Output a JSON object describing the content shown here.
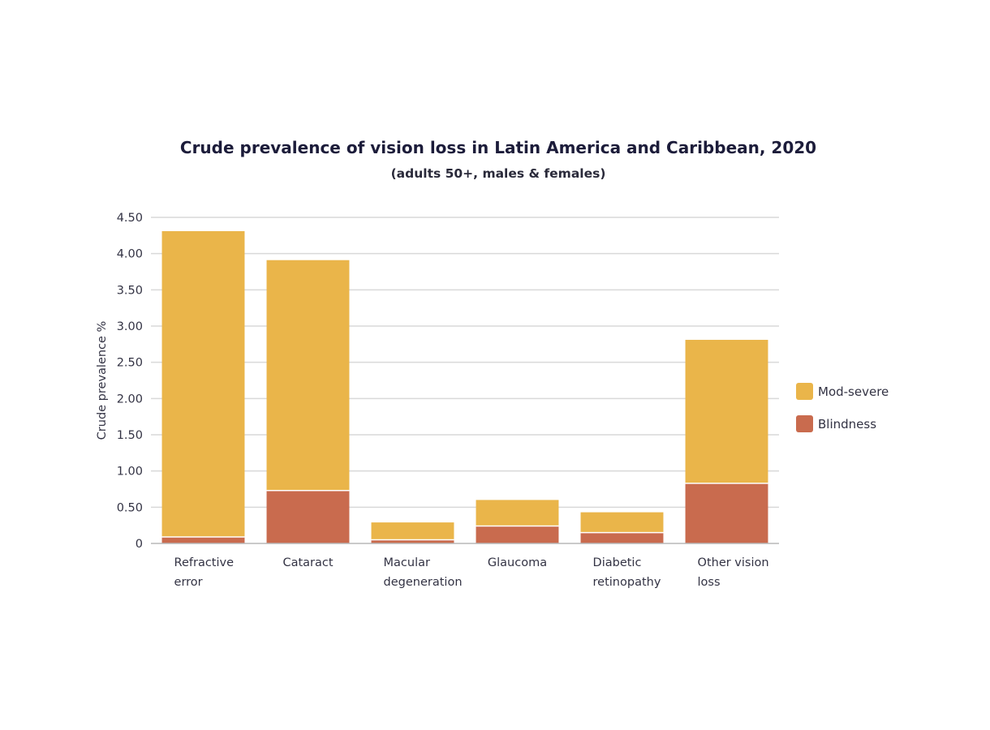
{
  "chart_data": {
    "type": "bar",
    "stacked": true,
    "title": "Crude prevalence of vision loss in Latin America and Caribbean, 2020",
    "subtitle": "(adults 50+, males & females)",
    "xlabel": "",
    "ylabel": "Crude prevalence %",
    "ylim": [
      0,
      4.5
    ],
    "yticks": [
      {
        "value": 0,
        "label": "0"
      },
      {
        "value": 0.5,
        "label": "0.50"
      },
      {
        "value": 1.0,
        "label": "1.00"
      },
      {
        "value": 1.5,
        "label": "1.50"
      },
      {
        "value": 2.0,
        "label": "2.00"
      },
      {
        "value": 2.5,
        "label": "2.50"
      },
      {
        "value": 3.0,
        "label": "3.00"
      },
      {
        "value": 3.5,
        "label": "3.50"
      },
      {
        "value": 4.0,
        "label": "4.00"
      },
      {
        "value": 4.5,
        "label": "4.50"
      }
    ],
    "categories": [
      [
        "Refractive",
        "error"
      ],
      [
        "Cataract"
      ],
      [
        "Macular",
        "degeneration"
      ],
      [
        "Glaucoma"
      ],
      [
        "Diabetic",
        "retinopathy"
      ],
      [
        "Other vision",
        "loss"
      ]
    ],
    "series": [
      {
        "name": "Blindness",
        "color": "#c96b4e",
        "values": [
          0.09,
          0.73,
          0.05,
          0.24,
          0.15,
          0.83
        ]
      },
      {
        "name": "Mod-severe",
        "color": "#eab54a",
        "values": [
          4.22,
          3.18,
          0.24,
          0.36,
          0.28,
          1.98
        ]
      }
    ],
    "legend": {
      "placement": "right",
      "order": [
        "Mod-severe",
        "Blindness"
      ]
    },
    "grid": true,
    "gridColor": "#d9d9d9",
    "axisColor": "#b8b8b8"
  }
}
